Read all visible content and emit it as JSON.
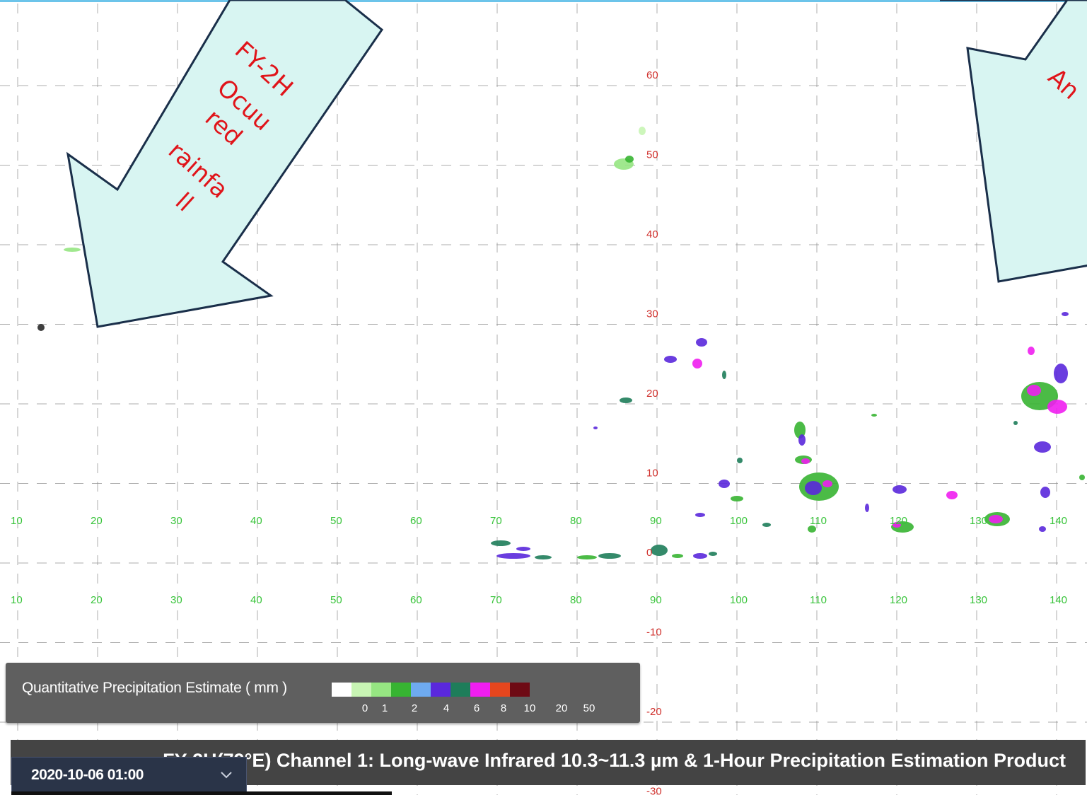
{
  "map": {
    "latitude_labels": [
      "60",
      "50",
      "40",
      "30",
      "20",
      "10",
      "0",
      "-10",
      "-20",
      "-30"
    ],
    "longitude_labels": [
      "10",
      "20",
      "30",
      "40",
      "50",
      "60",
      "70",
      "80",
      "90",
      "100",
      "110",
      "120",
      "130",
      "140"
    ],
    "colors": {
      "latitude_label": "#d0302c",
      "longitude_label": "#38c43a",
      "gridline": "#8a8a8a"
    }
  },
  "callouts": [
    {
      "name": "fy2h-callout",
      "lines": [
        "FY-2H",
        "Ocuu",
        "red",
        "rainfa",
        "ll"
      ]
    },
    {
      "name": "right-callout",
      "lines": [
        "An"
      ]
    }
  ],
  "legend": {
    "title": "Quantitative Precipitation Estimate ( mm )",
    "colors": [
      "#ffffff",
      "#c8f5b4",
      "#96e682",
      "#37b432",
      "#6eaaf0",
      "#5a28dc",
      "#1e7d5a",
      "#f01ef0",
      "#e6461e",
      "#6e0a14"
    ],
    "ticks": [
      "0",
      "1",
      "2",
      "4",
      "6",
      "8",
      "10",
      "20",
      "50"
    ]
  },
  "title_bar": {
    "text": "FY-2H(79°E) Channel 1: Long-wave Infrared 10.3~11.3 µm & 1-Hour Precipitation Estimation Product"
  },
  "time_selector": {
    "value": "2020-10-06 01:00",
    "icon": "chevron-down-icon"
  }
}
